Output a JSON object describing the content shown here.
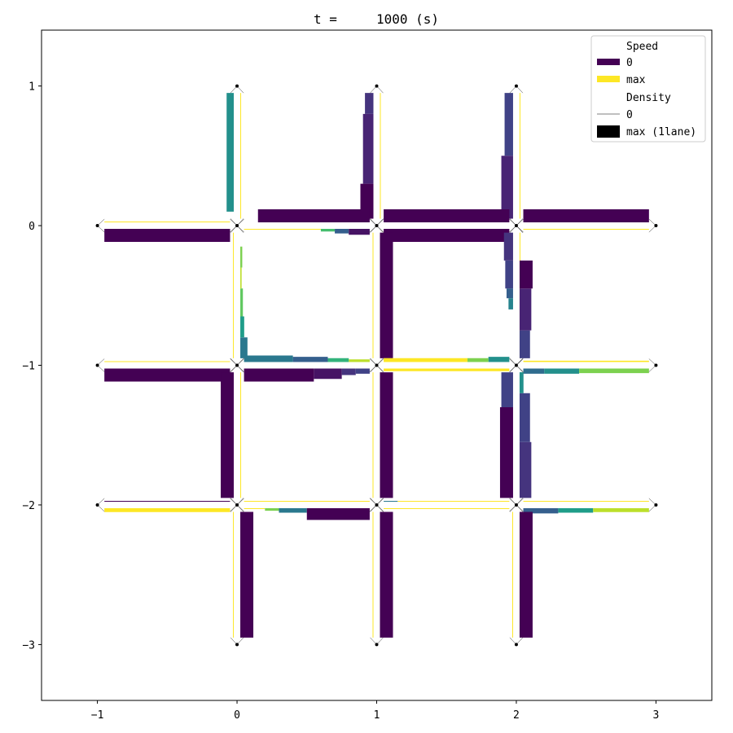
{
  "chart_data": {
    "type": "traffic-network",
    "title": "t =     1000 (s)",
    "xlabel": "",
    "ylabel": "",
    "xlim": [
      -1.4,
      3.4
    ],
    "ylim": [
      -3.4,
      1.4
    ],
    "xticks": [
      -1,
      0,
      1,
      2,
      3
    ],
    "yticks": [
      1,
      0,
      -1,
      -2,
      -3
    ],
    "xtick_labels": [
      "−1",
      "0",
      "1",
      "2",
      "3"
    ],
    "ytick_labels": [
      "1",
      "0",
      "−1",
      "−2",
      "−3"
    ],
    "grid": false,
    "colormap": "viridis",
    "colors": {
      "speed_zero": "#440154",
      "speed_max": "#fde725"
    },
    "legend": {
      "placement": "upper right",
      "speed_title": "Speed",
      "speed_zero": "0",
      "speed_max": "max",
      "density_title": "Density",
      "density_zero": "0",
      "density_max": "max (1lane)"
    },
    "nodes": [
      [
        0,
        1
      ],
      [
        1,
        1
      ],
      [
        2,
        1
      ],
      [
        -1,
        0
      ],
      [
        0,
        0
      ],
      [
        1,
        0
      ],
      [
        2,
        0
      ],
      [
        3,
        0
      ],
      [
        -1,
        -1
      ],
      [
        0,
        -1
      ],
      [
        1,
        -1
      ],
      [
        2,
        -1
      ],
      [
        3,
        -1
      ],
      [
        -1,
        -2
      ],
      [
        0,
        -2
      ],
      [
        1,
        -2
      ],
      [
        2,
        -2
      ],
      [
        3,
        -2
      ],
      [
        0,
        -3
      ],
      [
        1,
        -3
      ],
      [
        2,
        -3
      ]
    ],
    "links": [
      {
        "from": [
          -1,
          0
        ],
        "to": [
          0,
          0
        ],
        "segments": [
          {
            "s0": 0.05,
            "s1": 0.95,
            "speed": 0,
            "density": 1
          }
        ]
      },
      {
        "from": [
          0,
          0
        ],
        "to": [
          -1,
          0
        ],
        "segments": [
          {
            "s0": 0.05,
            "s1": 0.95,
            "speed": 1,
            "density": 0.05
          }
        ]
      },
      {
        "from": [
          -1,
          -1
        ],
        "to": [
          0,
          -1
        ],
        "segments": [
          {
            "s0": 0.05,
            "s1": 0.95,
            "speed": 0,
            "density": 1
          }
        ]
      },
      {
        "from": [
          0,
          -1
        ],
        "to": [
          -1,
          -1
        ],
        "segments": [
          {
            "s0": 0.05,
            "s1": 0.95,
            "speed": 1,
            "density": 0.05
          }
        ]
      },
      {
        "from": [
          -1,
          -2
        ],
        "to": [
          0,
          -2
        ],
        "segments": [
          {
            "s0": 0.05,
            "s1": 0.95,
            "speed": 1,
            "density": 0.3
          }
        ]
      },
      {
        "from": [
          0,
          -2
        ],
        "to": [
          -1,
          -2
        ],
        "segments": [
          {
            "s0": 0.05,
            "s1": 0.95,
            "speed": 0,
            "density": 0.01
          }
        ]
      },
      {
        "from": [
          0,
          0
        ],
        "to": [
          0,
          1
        ],
        "segments": [
          {
            "s0": 0.05,
            "s1": 0.95,
            "speed": 1,
            "density": 0.05
          }
        ]
      },
      {
        "from": [
          0,
          1
        ],
        "to": [
          0,
          0
        ],
        "segments": [
          {
            "s0": 0.05,
            "s1": 0.9,
            "speed": 0.5,
            "density": 0.55
          }
        ]
      },
      {
        "from": [
          1,
          0
        ],
        "to": [
          1,
          1
        ],
        "segments": [
          {
            "s0": 0.05,
            "s1": 0.95,
            "speed": 1,
            "density": 0.05
          }
        ]
      },
      {
        "from": [
          1,
          1
        ],
        "to": [
          1,
          0
        ],
        "segments": [
          {
            "s0": 0.05,
            "s1": 0.2,
            "speed": 0.15,
            "density": 0.65
          },
          {
            "s0": 0.2,
            "s1": 0.7,
            "speed": 0.1,
            "density": 0.8
          },
          {
            "s0": 0.7,
            "s1": 0.95,
            "speed": 0.0,
            "density": 1
          }
        ]
      },
      {
        "from": [
          2,
          0
        ],
        "to": [
          2,
          1
        ],
        "segments": [
          {
            "s0": 0.05,
            "s1": 0.95,
            "speed": 1,
            "density": 0.05
          }
        ]
      },
      {
        "from": [
          2,
          1
        ],
        "to": [
          2,
          0
        ],
        "segments": [
          {
            "s0": 0.05,
            "s1": 0.5,
            "speed": 0.2,
            "density": 0.65
          },
          {
            "s0": 0.5,
            "s1": 0.95,
            "speed": 0.1,
            "density": 0.9
          }
        ]
      },
      {
        "from": [
          0,
          0
        ],
        "to": [
          1,
          0
        ],
        "segments": [
          {
            "s0": 0.05,
            "s1": 0.6,
            "speed": 1,
            "density": 0.05
          },
          {
            "s0": 0.6,
            "s1": 0.7,
            "speed": 0.7,
            "density": 0.2
          },
          {
            "s0": 0.7,
            "s1": 0.8,
            "speed": 0.3,
            "density": 0.35
          },
          {
            "s0": 0.8,
            "s1": 0.95,
            "speed": 0.05,
            "density": 0.45
          }
        ]
      },
      {
        "from": [
          1,
          0
        ],
        "to": [
          0,
          0
        ],
        "segments": [
          {
            "s0": 0.05,
            "s1": 0.85,
            "speed": 0,
            "density": 1
          }
        ]
      },
      {
        "from": [
          1,
          0
        ],
        "to": [
          2,
          0
        ],
        "segments": [
          {
            "s0": 0.05,
            "s1": 0.95,
            "speed": 0,
            "density": 1
          }
        ]
      },
      {
        "from": [
          2,
          0
        ],
        "to": [
          1,
          0
        ],
        "segments": [
          {
            "s0": 0.05,
            "s1": 0.95,
            "speed": 0,
            "density": 1
          }
        ]
      },
      {
        "from": [
          2,
          0
        ],
        "to": [
          3,
          0
        ],
        "segments": [
          {
            "s0": 0.05,
            "s1": 0.95,
            "speed": 1,
            "density": 0.05
          }
        ]
      },
      {
        "from": [
          3,
          0
        ],
        "to": [
          2,
          0
        ],
        "segments": [
          {
            "s0": 0.05,
            "s1": 0.95,
            "speed": 0,
            "density": 1
          }
        ]
      },
      {
        "from": [
          0,
          -1
        ],
        "to": [
          0,
          0
        ],
        "segments": [
          {
            "s0": 0.05,
            "s1": 0.2,
            "speed": 0.4,
            "density": 0.55
          },
          {
            "s0": 0.2,
            "s1": 0.35,
            "speed": 0.55,
            "density": 0.3
          },
          {
            "s0": 0.35,
            "s1": 0.55,
            "speed": 0.75,
            "density": 0.2
          },
          {
            "s0": 0.55,
            "s1": 0.7,
            "speed": 0.9,
            "density": 0.1
          },
          {
            "s0": 0.7,
            "s1": 0.85,
            "speed": 0.8,
            "density": 0.15
          }
        ]
      },
      {
        "from": [
          0,
          0
        ],
        "to": [
          0,
          -1
        ],
        "segments": [
          {
            "s0": 0.05,
            "s1": 0.95,
            "speed": 1,
            "density": 0.05
          }
        ]
      },
      {
        "from": [
          1,
          -1
        ],
        "to": [
          1,
          0
        ],
        "segments": [
          {
            "s0": 0.05,
            "s1": 0.95,
            "speed": 0,
            "density": 1
          }
        ]
      },
      {
        "from": [
          1,
          0
        ],
        "to": [
          1,
          -1
        ],
        "segments": [
          {
            "s0": 0.05,
            "s1": 0.95,
            "speed": 1,
            "density": 0.05
          }
        ]
      },
      {
        "from": [
          2,
          -1
        ],
        "to": [
          2,
          0
        ],
        "segments": [
          {
            "s0": 0.05,
            "s1": 0.95,
            "speed": 1,
            "density": 0.05
          }
        ]
      },
      {
        "from": [
          2,
          0
        ],
        "to": [
          2,
          -1
        ],
        "segments": [
          {
            "s0": 0.05,
            "s1": 0.25,
            "speed": 0.15,
            "density": 0.7
          },
          {
            "s0": 0.25,
            "s1": 0.45,
            "speed": 0.2,
            "density": 0.6
          },
          {
            "s0": 0.45,
            "s1": 0.52,
            "speed": 0.3,
            "density": 0.5
          },
          {
            "s0": 0.52,
            "s1": 0.6,
            "speed": 0.45,
            "density": 0.35
          }
        ]
      },
      {
        "from": [
          2,
          -1
        ],
        "to": [
          2,
          0
        ],
        "segments": [
          {
            "s0": 0.05,
            "s1": 0.25,
            "speed": 0.2,
            "density": 0.8
          },
          {
            "s0": 0.25,
            "s1": 0.55,
            "speed": 0.1,
            "density": 0.9
          },
          {
            "s0": 0.55,
            "s1": 0.75,
            "speed": 0.0,
            "density": 1
          }
        ]
      },
      {
        "from": [
          0,
          -1
        ],
        "to": [
          1,
          -1
        ],
        "segments": [
          {
            "s0": 0.05,
            "s1": 0.55,
            "speed": 0,
            "density": 1
          },
          {
            "s0": 0.55,
            "s1": 0.75,
            "speed": 0.05,
            "density": 0.8
          },
          {
            "s0": 0.75,
            "s1": 0.85,
            "speed": 0.15,
            "density": 0.5
          },
          {
            "s0": 0.85,
            "s1": 0.95,
            "speed": 0.2,
            "density": 0.4
          }
        ]
      },
      {
        "from": [
          1,
          -1
        ],
        "to": [
          0,
          -1
        ],
        "segments": [
          {
            "s0": 0.05,
            "s1": 0.2,
            "speed": 0.9,
            "density": 0.2
          },
          {
            "s0": 0.2,
            "s1": 0.35,
            "speed": 0.65,
            "density": 0.3
          },
          {
            "s0": 0.35,
            "s1": 0.6,
            "speed": 0.3,
            "density": 0.4
          },
          {
            "s0": 0.6,
            "s1": 0.95,
            "speed": 0.4,
            "density": 0.5
          }
        ]
      },
      {
        "from": [
          1,
          -1
        ],
        "to": [
          2,
          -1
        ],
        "segments": [
          {
            "s0": 0.05,
            "s1": 0.95,
            "speed": 1,
            "density": 0.2
          }
        ]
      },
      {
        "from": [
          2,
          -1
        ],
        "to": [
          1,
          -1
        ],
        "segments": [
          {
            "s0": 0.05,
            "s1": 0.2,
            "speed": 0.5,
            "density": 0.4
          },
          {
            "s0": 0.2,
            "s1": 0.35,
            "speed": 0.8,
            "density": 0.3
          },
          {
            "s0": 0.35,
            "s1": 0.95,
            "speed": 1,
            "density": 0.3
          }
        ]
      },
      {
        "from": [
          2,
          -1
        ],
        "to": [
          3,
          -1
        ],
        "segments": [
          {
            "s0": 0.05,
            "s1": 0.2,
            "speed": 0.35,
            "density": 0.4
          },
          {
            "s0": 0.2,
            "s1": 0.45,
            "speed": 0.5,
            "density": 0.4
          },
          {
            "s0": 0.45,
            "s1": 0.95,
            "speed": 0.8,
            "density": 0.35
          }
        ]
      },
      {
        "from": [
          3,
          -1
        ],
        "to": [
          2,
          -1
        ],
        "segments": [
          {
            "s0": 0.05,
            "s1": 0.95,
            "speed": 1,
            "density": 0.1
          }
        ]
      },
      {
        "from": [
          0,
          -2
        ],
        "to": [
          0,
          -1
        ],
        "segments": [
          {
            "s0": 0.05,
            "s1": 0.95,
            "speed": 1,
            "density": 0.05
          }
        ]
      },
      {
        "from": [
          0,
          -1
        ],
        "to": [
          0,
          -2
        ],
        "segments": [
          {
            "s0": 0.05,
            "s1": 0.95,
            "speed": 0,
            "density": 1
          }
        ]
      },
      {
        "from": [
          1,
          -2
        ],
        "to": [
          1,
          -1
        ],
        "segments": [
          {
            "s0": 0.05,
            "s1": 0.95,
            "speed": 0,
            "density": 1
          }
        ]
      },
      {
        "from": [
          1,
          -1
        ],
        "to": [
          1,
          -2
        ],
        "segments": [
          {
            "s0": 0.05,
            "s1": 0.95,
            "speed": 1,
            "density": 0.05
          }
        ]
      },
      {
        "from": [
          2,
          -2
        ],
        "to": [
          2,
          -1
        ],
        "segments": [
          {
            "s0": 0.05,
            "s1": 0.45,
            "speed": 0.15,
            "density": 0.9
          },
          {
            "s0": 0.45,
            "s1": 0.8,
            "speed": 0.2,
            "density": 0.8
          },
          {
            "s0": 0.8,
            "s1": 0.95,
            "speed": 0.5,
            "density": 0.3
          }
        ]
      },
      {
        "from": [
          2,
          -1
        ],
        "to": [
          2,
          -2
        ],
        "segments": [
          {
            "s0": 0.05,
            "s1": 0.3,
            "speed": 0.2,
            "density": 0.9
          },
          {
            "s0": 0.3,
            "s1": 0.95,
            "speed": 0.0,
            "density": 1
          }
        ]
      },
      {
        "from": [
          0,
          -2
        ],
        "to": [
          1,
          -2
        ],
        "segments": [
          {
            "s0": 0.05,
            "s1": 0.2,
            "speed": 1,
            "density": 0.05
          },
          {
            "s0": 0.2,
            "s1": 0.3,
            "speed": 0.8,
            "density": 0.2
          },
          {
            "s0": 0.3,
            "s1": 0.5,
            "speed": 0.4,
            "density": 0.35
          },
          {
            "s0": 0.5,
            "s1": 0.95,
            "speed": 0.0,
            "density": 0.9
          }
        ]
      },
      {
        "from": [
          1,
          -2
        ],
        "to": [
          0,
          -2
        ],
        "segments": [
          {
            "s0": 0.05,
            "s1": 0.95,
            "speed": 1,
            "density": 0.05
          }
        ]
      },
      {
        "from": [
          1,
          -2
        ],
        "to": [
          2,
          -2
        ],
        "segments": [
          {
            "s0": 0.05,
            "s1": 0.95,
            "speed": 1,
            "density": 0.05
          }
        ]
      },
      {
        "from": [
          2,
          -2
        ],
        "to": [
          1,
          -2
        ],
        "segments": [
          {
            "s0": 0.05,
            "s1": 0.85,
            "speed": 1,
            "density": 0.05
          },
          {
            "s0": 0.85,
            "s1": 0.95,
            "speed": 0.4,
            "density": 0.05
          }
        ]
      },
      {
        "from": [
          2,
          -2
        ],
        "to": [
          3,
          -2
        ],
        "segments": [
          {
            "s0": 0.05,
            "s1": 0.3,
            "speed": 0.3,
            "density": 0.4
          },
          {
            "s0": 0.3,
            "s1": 0.55,
            "speed": 0.55,
            "density": 0.35
          },
          {
            "s0": 0.55,
            "s1": 0.95,
            "speed": 0.9,
            "density": 0.3
          }
        ]
      },
      {
        "from": [
          3,
          -2
        ],
        "to": [
          2,
          -2
        ],
        "segments": [
          {
            "s0": 0.05,
            "s1": 0.95,
            "speed": 1,
            "density": 0.05
          }
        ]
      },
      {
        "from": [
          0,
          -3
        ],
        "to": [
          0,
          -2
        ],
        "segments": [
          {
            "s0": 0.05,
            "s1": 0.95,
            "speed": 0,
            "density": 1
          }
        ]
      },
      {
        "from": [
          0,
          -2
        ],
        "to": [
          0,
          -3
        ],
        "segments": [
          {
            "s0": 0.05,
            "s1": 0.95,
            "speed": 1,
            "density": 0.05
          }
        ]
      },
      {
        "from": [
          1,
          -3
        ],
        "to": [
          1,
          -2
        ],
        "segments": [
          {
            "s0": 0.05,
            "s1": 0.95,
            "speed": 0,
            "density": 1
          }
        ]
      },
      {
        "from": [
          1,
          -2
        ],
        "to": [
          1,
          -3
        ],
        "segments": [
          {
            "s0": 0.05,
            "s1": 0.95,
            "speed": 1,
            "density": 0.05
          }
        ]
      },
      {
        "from": [
          2,
          -3
        ],
        "to": [
          2,
          -2
        ],
        "segments": [
          {
            "s0": 0.05,
            "s1": 0.95,
            "speed": 0,
            "density": 1
          }
        ]
      },
      {
        "from": [
          2,
          -2
        ],
        "to": [
          2,
          -3
        ],
        "segments": [
          {
            "s0": 0.05,
            "s1": 0.95,
            "speed": 1,
            "density": 0.05
          }
        ]
      }
    ]
  }
}
